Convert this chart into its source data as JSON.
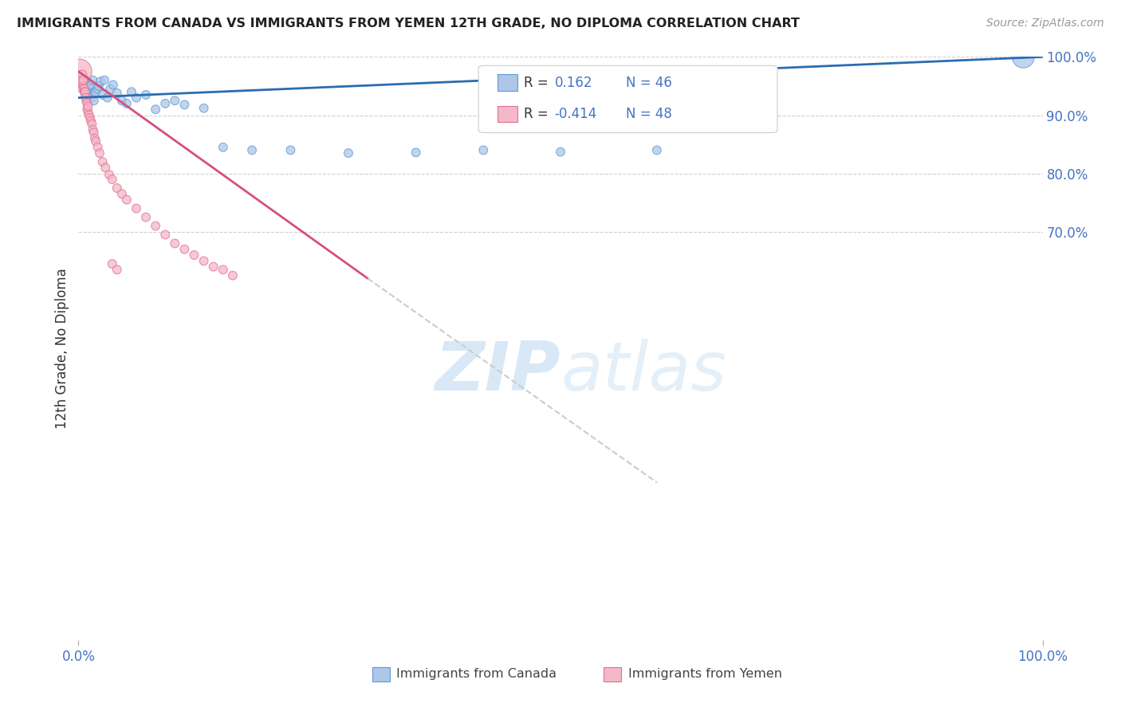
{
  "title": "IMMIGRANTS FROM CANADA VS IMMIGRANTS FROM YEMEN 12TH GRADE, NO DIPLOMA CORRELATION CHART",
  "source": "Source: ZipAtlas.com",
  "ylabel": "12th Grade, No Diploma",
  "xmin": 0.0,
  "xmax": 1.0,
  "ymin": 0.0,
  "ymax": 1.0,
  "right_yticks": [
    0.7,
    0.8,
    0.9,
    1.0
  ],
  "right_yticklabels": [
    "70.0%",
    "80.0%",
    "90.0%",
    "100.0%"
  ],
  "canada_color": "#aec6e8",
  "canada_edge_color": "#5b9bd5",
  "yemen_color": "#f4b8c8",
  "yemen_edge_color": "#e07090",
  "trend_canada_color": "#2b6cb0",
  "trend_yemen_color": "#d6507a",
  "trend_dashed_color": "#cccccc",
  "R_canada": 0.162,
  "N_canada": 46,
  "R_yemen": -0.414,
  "N_yemen": 48,
  "canada_x": [
    0.002,
    0.004,
    0.005,
    0.006,
    0.007,
    0.007,
    0.008,
    0.009,
    0.01,
    0.01,
    0.011,
    0.012,
    0.013,
    0.014,
    0.015,
    0.016,
    0.017,
    0.018,
    0.02,
    0.021,
    0.023,
    0.025,
    0.027,
    0.03,
    0.033,
    0.036,
    0.04,
    0.045,
    0.05,
    0.055,
    0.06,
    0.07,
    0.08,
    0.09,
    0.1,
    0.11,
    0.13,
    0.15,
    0.18,
    0.22,
    0.28,
    0.35,
    0.42,
    0.5,
    0.6,
    0.98
  ],
  "canada_y": [
    0.96,
    0.962,
    0.955,
    0.958,
    0.953,
    0.948,
    0.96,
    0.945,
    0.94,
    0.955,
    0.95,
    0.935,
    0.952,
    0.93,
    0.96,
    0.925,
    0.94,
    0.938,
    0.945,
    0.95,
    0.958,
    0.935,
    0.96,
    0.93,
    0.945,
    0.952,
    0.938,
    0.925,
    0.92,
    0.94,
    0.93,
    0.935,
    0.91,
    0.92,
    0.925,
    0.918,
    0.912,
    0.845,
    0.84,
    0.84,
    0.835,
    0.836,
    0.84,
    0.837,
    0.84,
    1.0
  ],
  "canada_sizes": [
    60,
    60,
    60,
    60,
    60,
    60,
    60,
    60,
    60,
    60,
    60,
    60,
    60,
    60,
    60,
    60,
    60,
    60,
    60,
    60,
    60,
    60,
    60,
    60,
    60,
    60,
    60,
    60,
    60,
    60,
    60,
    60,
    60,
    60,
    60,
    60,
    60,
    60,
    60,
    60,
    60,
    60,
    60,
    60,
    60,
    400
  ],
  "yemen_x": [
    0.001,
    0.002,
    0.003,
    0.003,
    0.004,
    0.004,
    0.005,
    0.005,
    0.006,
    0.006,
    0.007,
    0.007,
    0.008,
    0.008,
    0.009,
    0.009,
    0.01,
    0.01,
    0.011,
    0.012,
    0.013,
    0.014,
    0.015,
    0.016,
    0.017,
    0.018,
    0.02,
    0.022,
    0.025,
    0.028,
    0.032,
    0.035,
    0.04,
    0.045,
    0.05,
    0.06,
    0.07,
    0.08,
    0.09,
    0.1,
    0.11,
    0.12,
    0.13,
    0.14,
    0.15,
    0.16,
    0.035,
    0.04
  ],
  "yemen_y": [
    0.975,
    0.965,
    0.955,
    0.96,
    0.97,
    0.945,
    0.95,
    0.96,
    0.945,
    0.94,
    0.935,
    0.94,
    0.925,
    0.93,
    0.92,
    0.91,
    0.905,
    0.915,
    0.9,
    0.895,
    0.89,
    0.885,
    0.875,
    0.87,
    0.86,
    0.855,
    0.845,
    0.835,
    0.82,
    0.81,
    0.798,
    0.79,
    0.775,
    0.765,
    0.755,
    0.74,
    0.725,
    0.71,
    0.695,
    0.68,
    0.67,
    0.66,
    0.65,
    0.64,
    0.635,
    0.625,
    0.645,
    0.635
  ],
  "yemen_sizes": [
    500,
    60,
    60,
    60,
    60,
    60,
    60,
    60,
    60,
    60,
    60,
    60,
    60,
    60,
    60,
    60,
    60,
    60,
    60,
    60,
    60,
    60,
    60,
    60,
    60,
    60,
    60,
    60,
    60,
    60,
    60,
    60,
    60,
    60,
    60,
    60,
    60,
    60,
    60,
    60,
    60,
    60,
    60,
    60,
    60,
    60,
    60,
    60
  ],
  "trend_canada_x0": 0.0,
  "trend_canada_y0": 0.93,
  "trend_canada_x1": 1.0,
  "trend_canada_y1": 1.0,
  "trend_yemen_x0": 0.0,
  "trend_yemen_y0": 0.975,
  "trend_yemen_x1": 0.3,
  "trend_yemen_y1": 0.62,
  "trend_yemen_dash_x0": 0.3,
  "trend_yemen_dash_y0": 0.62,
  "trend_yemen_dash_x1": 0.6,
  "trend_yemen_dash_y1": 0.27,
  "watermark_zip": "ZIP",
  "watermark_atlas": "atlas",
  "background_color": "#ffffff",
  "grid_color": "#d0d0d0"
}
